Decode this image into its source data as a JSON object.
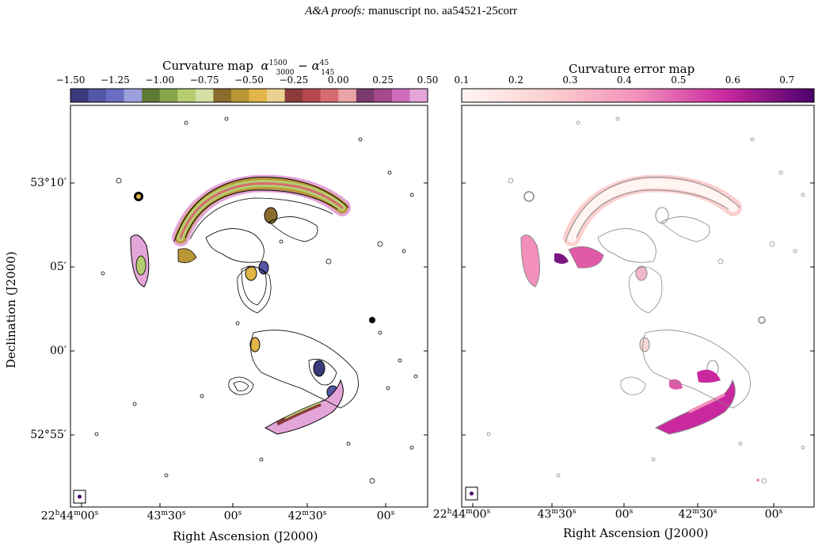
{
  "header": {
    "italic": "A&A proofs:",
    "rest": " manuscript no. aa54521-25corr"
  },
  "left_panel": {
    "colorbar_title_prefix": "Curvature map",
    "colorbar_ticks": [
      "−1.50",
      "−1.25",
      "−1.00",
      "−0.75",
      "−0.50",
      "−0.25",
      "0.00",
      "0.25",
      "0.50"
    ],
    "colorbar_colors": [
      "#3b3b7c",
      "#5457a3",
      "#6b6ec4",
      "#9b9fdc",
      "#5e7a34",
      "#86a54d",
      "#b5cd70",
      "#d3dfa3",
      "#8a6c2d",
      "#b89535",
      "#e2b549",
      "#ead18f",
      "#8b3a3c",
      "#b5494d",
      "#d66b70",
      "#eaa3a6",
      "#7a3a6c",
      "#a4498d",
      "#cf6cbc",
      "#e4a5d8"
    ],
    "ylabel": "Declination (J2000)",
    "xlabel": "Right Ascension (J2000)",
    "yticks": [
      "53°10′",
      "05′",
      "00′",
      "52°55′"
    ],
    "xticks": [
      {
        "h": "22",
        "m": "44",
        "s": "00"
      },
      {
        "m": "43",
        "s": "30"
      },
      {
        "s": "00"
      },
      {
        "m": "42",
        "s": "30"
      },
      {
        "s": "00"
      }
    ]
  },
  "right_panel": {
    "colorbar_title": "Curvature error map",
    "colorbar_ticks": [
      "0.1",
      "0.2",
      "0.3",
      "0.4",
      "0.5",
      "0.6",
      "0.7"
    ],
    "xlabel": "Right Ascension (J2000)",
    "xticks": [
      {
        "h": "22",
        "m": "44",
        "s": "00"
      },
      {
        "m": "43",
        "s": "30"
      },
      {
        "s": "00"
      },
      {
        "m": "42",
        "s": "30"
      },
      {
        "s": "00"
      }
    ]
  }
}
